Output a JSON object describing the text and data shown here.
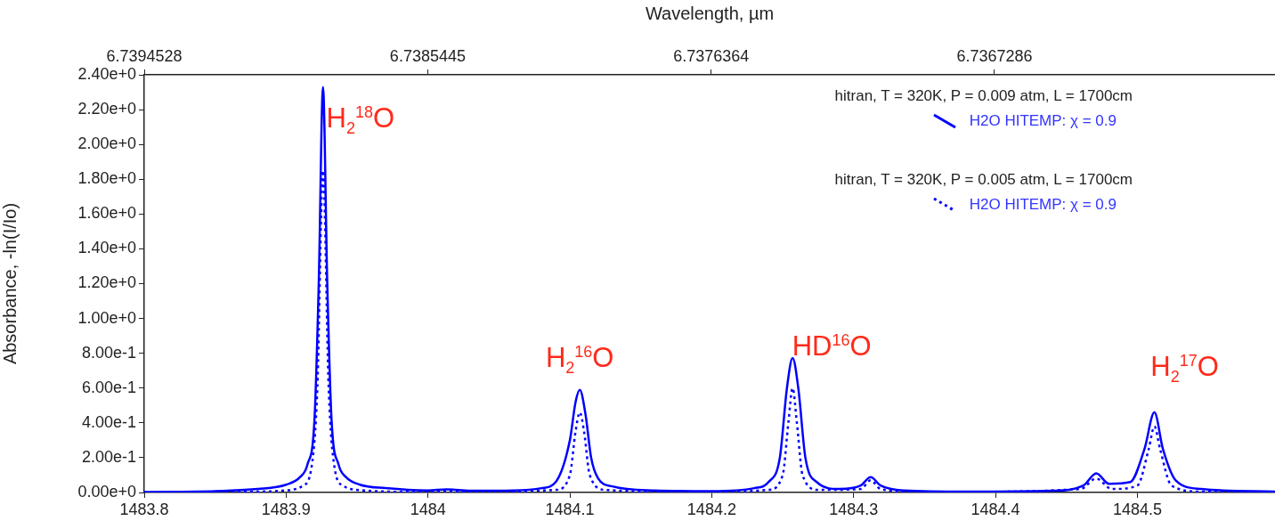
{
  "chart_data": {
    "type": "line",
    "x2label": "Wavelength, µm",
    "ylabel": "Absorbance, -ln(I/Io)",
    "xlim": [
      1483.8,
      1484.597
    ],
    "xticks": [
      1483.8,
      1483.9,
      1484,
      1484.1,
      1484.2,
      1484.3,
      1484.4,
      1484.5
    ],
    "x2lim": [
      6.7394528,
      6.73583
    ],
    "x2ticks": [
      6.7394528,
      6.7385445,
      6.7376364,
      6.7367286
    ],
    "ylim": [
      0,
      2.4
    ],
    "yticks": [
      {
        "value": 0,
        "label": "0.00e+0"
      },
      {
        "value": 0.2,
        "label": "2.00e-1"
      },
      {
        "value": 0.4,
        "label": "4.00e-1"
      },
      {
        "value": 0.6,
        "label": "6.00e-1"
      },
      {
        "value": 0.8,
        "label": "8.00e-1"
      },
      {
        "value": 1,
        "label": "1.00e+0"
      },
      {
        "value": 1.2,
        "label": "1.20e+0"
      },
      {
        "value": 1.4,
        "label": "1.40e+0"
      },
      {
        "value": 1.6,
        "label": "1.60e+0"
      },
      {
        "value": 1.8,
        "label": "1.80e+0"
      },
      {
        "value": 2,
        "label": "2.00e+0"
      },
      {
        "value": 2.2,
        "label": "2.20e+0"
      },
      {
        "value": 2.4,
        "label": "2.40e+0"
      }
    ],
    "grid": false,
    "legend": "top right",
    "marker": "none",
    "series": [
      {
        "name": "H2O HITEMP: χ = 0.9",
        "color": "#0000ff",
        "line_style": "solid",
        "x": [
          1483.8,
          1483.85,
          1483.88,
          1483.9,
          1483.91,
          1483.915,
          1483.92,
          1483.923,
          1483.926,
          1483.929,
          1483.932,
          1483.937,
          1483.942,
          1483.952,
          1483.97,
          1484.0,
          1484.013,
          1484.03,
          1484.06,
          1484.08,
          1484.09,
          1484.1,
          1484.104,
          1484.107,
          1484.111,
          1484.115,
          1484.12,
          1484.13,
          1484.16,
          1484.2,
          1484.23,
          1484.24,
          1484.248,
          1484.253,
          1484.257,
          1484.261,
          1484.266,
          1484.274,
          1484.29,
          1484.305,
          1484.312,
          1484.319,
          1484.335,
          1484.38,
          1484.44,
          1484.462,
          1484.471,
          1484.48,
          1484.495,
          1484.505,
          1484.512,
          1484.518,
          1484.527,
          1484.545,
          1484.597
        ],
        "values": [
          0.003,
          0.008,
          0.02,
          0.045,
          0.09,
          0.16,
          0.42,
          1.2,
          2.33,
          1.2,
          0.42,
          0.16,
          0.09,
          0.045,
          0.025,
          0.012,
          0.018,
          0.01,
          0.012,
          0.025,
          0.06,
          0.3,
          0.52,
          0.59,
          0.45,
          0.2,
          0.08,
          0.035,
          0.012,
          0.008,
          0.025,
          0.06,
          0.2,
          0.6,
          0.773,
          0.6,
          0.2,
          0.06,
          0.02,
          0.04,
          0.088,
          0.04,
          0.012,
          0.005,
          0.01,
          0.04,
          0.11,
          0.05,
          0.06,
          0.25,
          0.46,
          0.25,
          0.07,
          0.02,
          0.005
        ]
      },
      {
        "name": "H2O HITEMP: χ = 0.9",
        "color": "#0000ff",
        "line_style": "dotted",
        "x": [
          1483.8,
          1483.88,
          1483.9,
          1483.912,
          1483.918,
          1483.922,
          1483.926,
          1483.93,
          1483.934,
          1483.94,
          1483.955,
          1484.0,
          1484.013,
          1484.03,
          1484.09,
          1484.1,
          1484.104,
          1484.107,
          1484.11,
          1484.114,
          1484.125,
          1484.2,
          1484.24,
          1484.25,
          1484.254,
          1484.257,
          1484.26,
          1484.264,
          1484.275,
          1484.305,
          1484.312,
          1484.319,
          1484.35,
          1484.46,
          1484.471,
          1484.482,
          1484.5,
          1484.508,
          1484.512,
          1484.516,
          1484.524,
          1484.545,
          1484.597
        ],
        "values": [
          0.001,
          0.005,
          0.012,
          0.04,
          0.15,
          0.6,
          1.85,
          0.6,
          0.15,
          0.04,
          0.012,
          0.003,
          0.008,
          0.003,
          0.015,
          0.1,
          0.35,
          0.46,
          0.35,
          0.1,
          0.015,
          0.002,
          0.015,
          0.1,
          0.4,
          0.6,
          0.4,
          0.1,
          0.015,
          0.02,
          0.07,
          0.02,
          0.002,
          0.02,
          0.08,
          0.02,
          0.04,
          0.25,
          0.38,
          0.25,
          0.04,
          0.005,
          0.002
        ]
      }
    ],
    "annotations": [
      "hitran, T = 320K, P = 0.009 atm, L = 1700cm",
      "hitran, T = 320K, P = 0.005 atm, L = 1700cm",
      {
        "text": "H$_{2}$$^{18}$O",
        "x": 1483.926,
        "y": 2.33
      },
      {
        "text": "H$_{2}$$^{16}$O",
        "x": 1484.107,
        "y": 0.59
      },
      {
        "text": "HD$^{16}$O",
        "x": 1484.257,
        "y": 0.773
      },
      {
        "text": "H$_{2}$$^{17}$O",
        "x": 1484.512,
        "y": 0.46
      }
    ]
  }
}
